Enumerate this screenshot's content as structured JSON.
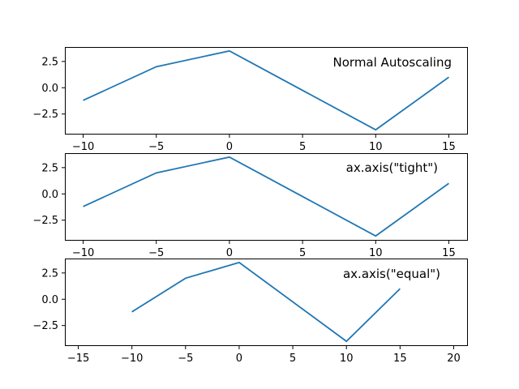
{
  "chart_data": [
    {
      "type": "line",
      "annotation": "Normal Autoscaling",
      "x": [
        -10,
        -5,
        0,
        10,
        15
      ],
      "y": [
        -1.2,
        2.0,
        3.5,
        -4.0,
        1.0
      ],
      "xlim": [
        -11.25,
        16.25
      ],
      "ylim": [
        -4.375,
        3.875
      ],
      "xticks": [
        -10,
        -5,
        0,
        5,
        10,
        15
      ],
      "xtick_labels": [
        "−10",
        "−5",
        "0",
        "5",
        "10",
        "15"
      ],
      "yticks": [
        -2.5,
        0.0,
        2.5
      ],
      "ytick_labels": [
        "−2.5",
        "0.0",
        "2.5"
      ],
      "color": "#1f77b4",
      "grid": false
    },
    {
      "type": "line",
      "annotation": "ax.axis(\"tight\")",
      "x": [
        -10,
        -5,
        0,
        10,
        15
      ],
      "y": [
        -1.2,
        2.0,
        3.5,
        -4.0,
        1.0
      ],
      "xlim": [
        -11.25,
        16.25
      ],
      "ylim": [
        -4.375,
        3.875
      ],
      "xticks": [
        -10,
        -5,
        0,
        5,
        10,
        15
      ],
      "xtick_labels": [
        "−10",
        "−5",
        "0",
        "5",
        "10",
        "15"
      ],
      "yticks": [
        -2.5,
        0.0,
        2.5
      ],
      "ytick_labels": [
        "−2.5",
        "0.0",
        "2.5"
      ],
      "color": "#1f77b4",
      "grid": false
    },
    {
      "type": "line",
      "annotation": "ax.axis(\"equal\")",
      "x": [
        -10,
        -5,
        0,
        10,
        15
      ],
      "y": [
        -1.2,
        2.0,
        3.5,
        -4.0,
        1.0
      ],
      "xlim": [
        -16.25,
        21.25
      ],
      "ylim": [
        -4.375,
        3.875
      ],
      "xticks": [
        -15,
        -10,
        -5,
        0,
        5,
        10,
        15,
        20
      ],
      "xtick_labels": [
        "−15",
        "−10",
        "−5",
        "0",
        "5",
        "10",
        "15",
        "20"
      ],
      "yticks": [
        -2.5,
        0.0,
        2.5
      ],
      "ytick_labels": [
        "−2.5",
        "0.0",
        "2.5"
      ],
      "color": "#1f77b4",
      "grid": false
    }
  ]
}
